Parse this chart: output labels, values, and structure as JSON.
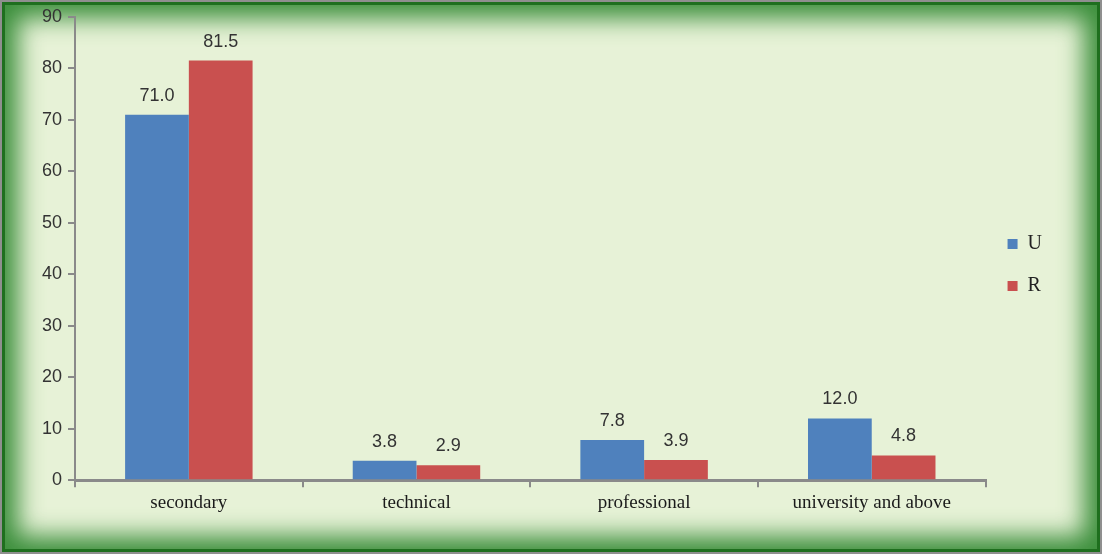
{
  "chart_data": {
    "type": "bar",
    "categories": [
      "secondary",
      "technical",
      "professional",
      "university and above"
    ],
    "series": [
      {
        "name": "U",
        "color": "#4f81bd",
        "values": [
          71.0,
          3.8,
          7.8,
          12.0
        ],
        "value_labels": [
          "71.0",
          "3.8",
          "7.8",
          "12.0"
        ]
      },
      {
        "name": "R",
        "color": "#c9504f",
        "values": [
          81.5,
          2.9,
          3.9,
          4.8
        ],
        "value_labels": [
          "81.5",
          "2.9",
          "3.9",
          "4.8"
        ]
      }
    ],
    "ylim": [
      0,
      90
    ],
    "yticks": [
      0,
      10,
      20,
      30,
      40,
      50,
      60,
      70,
      80,
      90
    ],
    "grid": false,
    "legend": "right"
  }
}
